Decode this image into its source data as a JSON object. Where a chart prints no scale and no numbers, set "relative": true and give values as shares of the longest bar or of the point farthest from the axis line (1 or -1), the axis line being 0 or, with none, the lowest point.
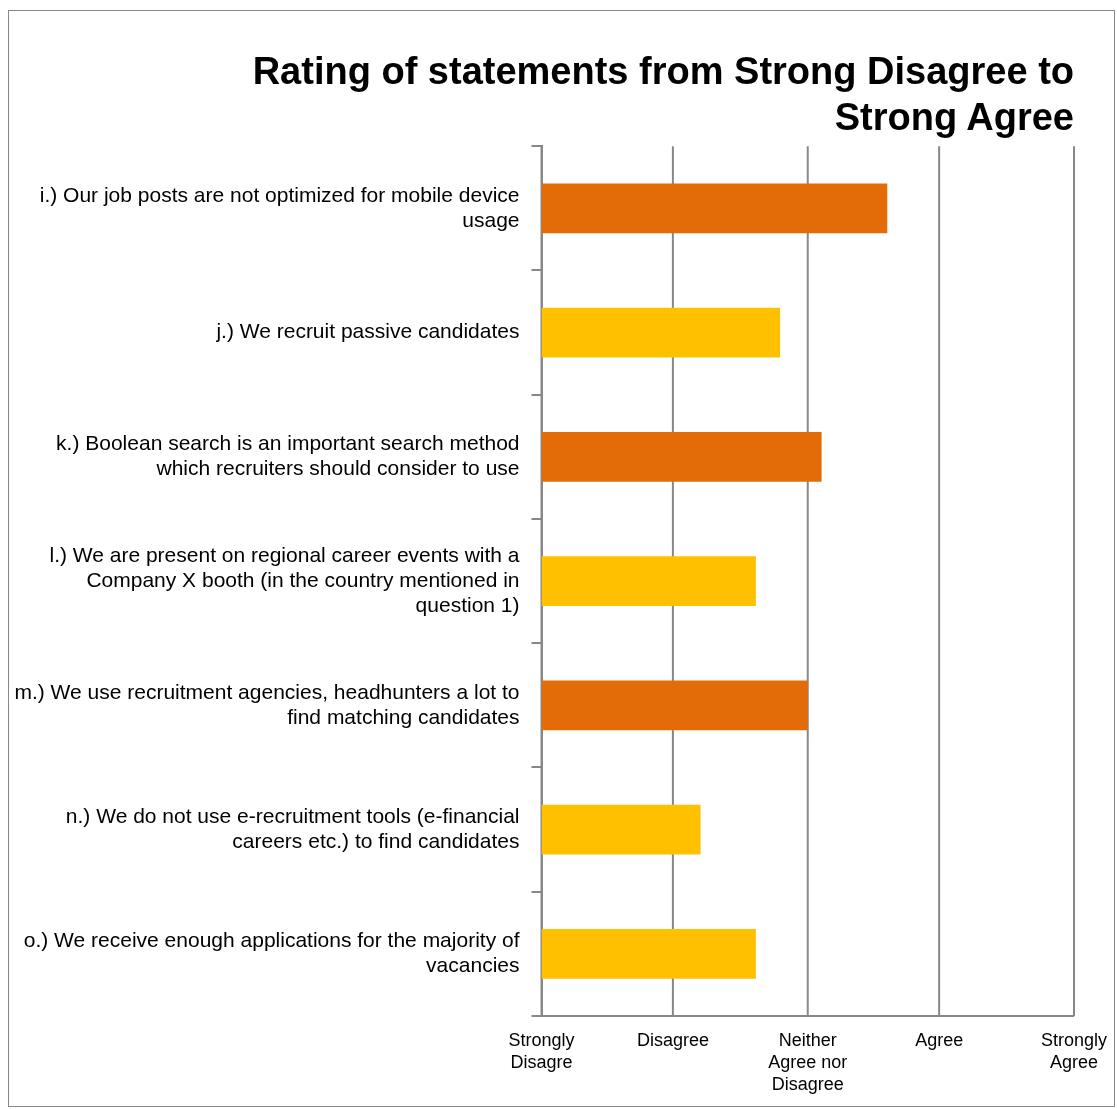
{
  "chart_data": {
    "type": "bar",
    "orientation": "horizontal",
    "relative": true,
    "title": "Rating of statements from Strong Disagree to Strong Agree",
    "categories": [
      "i.) Our job posts are not optimized for mobile device usage",
      "j.) We recruit passive candidates",
      "k.) Boolean search is an important search method which recruiters should consider to use",
      "l.) We are present on regional career events with a Company X booth (in the country mentioned in question 1)",
      "m.) We use recruitment agencies, headhunters a lot to find matching candidates",
      "n.) We do not use e-recruitment tools (e-financial careers etc.) to find candidates",
      "o.) We receive enough applications for the majority of vacancies"
    ],
    "values": [
      1,
      0.69,
      0.81,
      0.62,
      0.77,
      0.46,
      0.62
    ],
    "colors": [
      "#e36c09",
      "#ffc000",
      "#e36c09",
      "#ffc000",
      "#e36c09",
      "#ffc000",
      "#ffc000"
    ],
    "ref_lines": [
      {
        "axis": "x",
        "value": 0,
        "label": "Strongly Disagre",
        "color": "#888888"
      },
      {
        "axis": "x",
        "value": 0.38,
        "label": "Disagree",
        "color": "#888888"
      },
      {
        "axis": "x",
        "value": 0.77,
        "label": "Neither Agree nor Disagree",
        "color": "#888888"
      },
      {
        "axis": "x",
        "value": 1.15,
        "label": "Agree",
        "color": "#888888"
      },
      {
        "axis": "x",
        "value": 1.54,
        "label": "Strongly Agree",
        "color": "#888888"
      }
    ],
    "legend": false
  }
}
